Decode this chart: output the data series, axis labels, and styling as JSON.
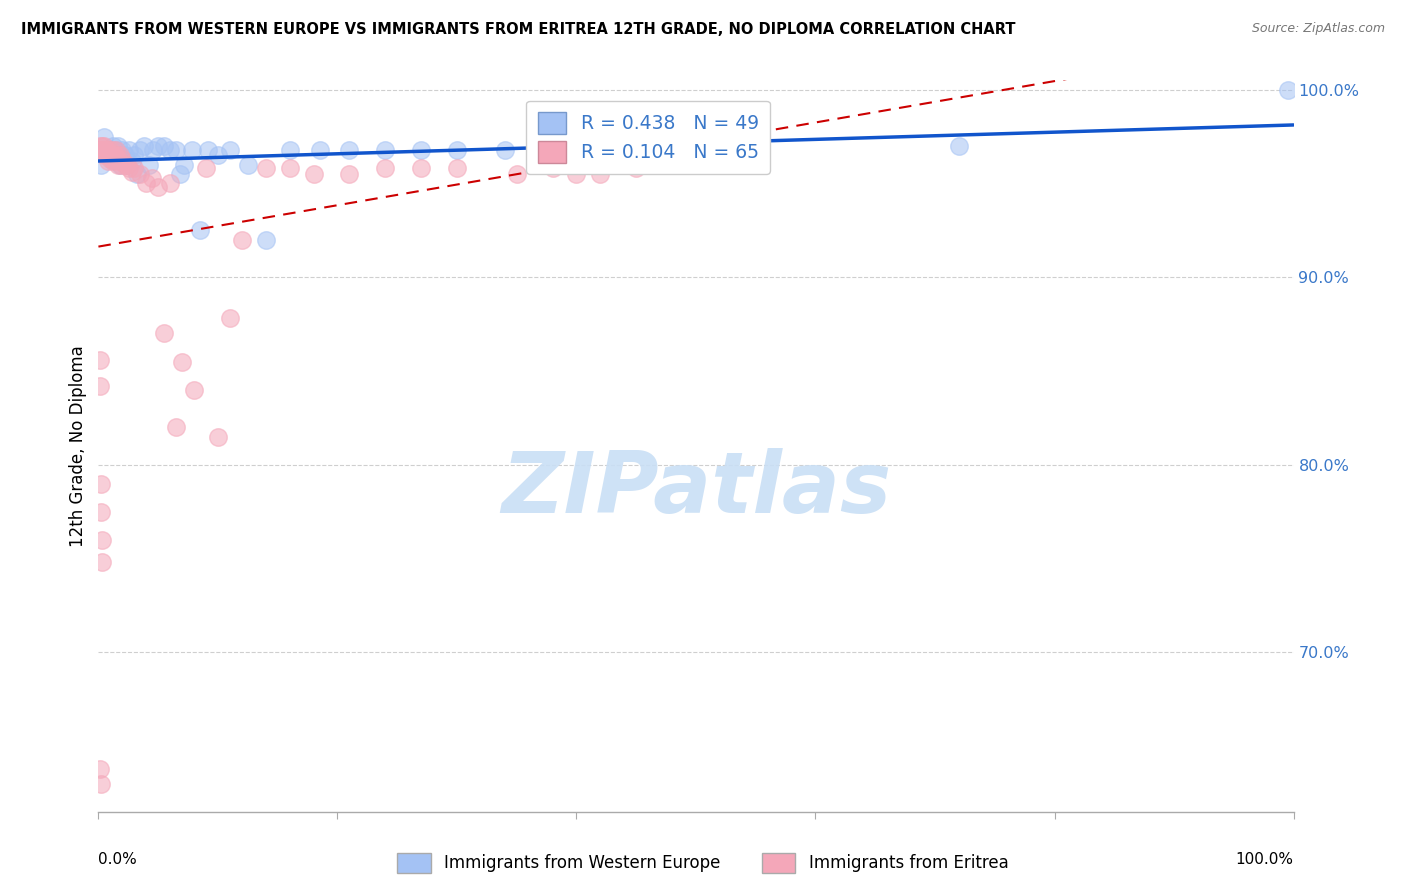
{
  "title": "IMMIGRANTS FROM WESTERN EUROPE VS IMMIGRANTS FROM ERITREA 12TH GRADE, NO DIPLOMA CORRELATION CHART",
  "source": "Source: ZipAtlas.com",
  "ylabel": "12th Grade, No Diploma",
  "xlim": [
    0.0,
    1.0
  ],
  "ylim": [
    0.615,
    1.005
  ],
  "yticks": [
    0.7,
    0.8,
    0.9,
    1.0
  ],
  "ytick_labels": [
    "70.0%",
    "80.0%",
    "90.0%",
    "100.0%"
  ],
  "blue_color": "#a4c2f4",
  "pink_color": "#f4a7b9",
  "blue_line_color": "#1155cc",
  "pink_line_color": "#cc0000",
  "R_blue": "0.438",
  "N_blue": "49",
  "R_pink": "0.104",
  "N_pink": "65",
  "blue_x": [
    0.002,
    0.005,
    0.008,
    0.01,
    0.012,
    0.014,
    0.016,
    0.018,
    0.02,
    0.022,
    0.024,
    0.026,
    0.028,
    0.03,
    0.032,
    0.035,
    0.038,
    0.042,
    0.046,
    0.05,
    0.055,
    0.06,
    0.065,
    0.068,
    0.072,
    0.078,
    0.085,
    0.092,
    0.1,
    0.11,
    0.125,
    0.14,
    0.16,
    0.185,
    0.21,
    0.24,
    0.27,
    0.3,
    0.34,
    0.38,
    0.42,
    0.43,
    0.44,
    0.45,
    0.46,
    0.48,
    0.51,
    0.72,
    0.995
  ],
  "blue_y": [
    0.96,
    0.975,
    0.968,
    0.965,
    0.97,
    0.968,
    0.97,
    0.96,
    0.968,
    0.965,
    0.96,
    0.968,
    0.962,
    0.965,
    0.955,
    0.968,
    0.97,
    0.96,
    0.968,
    0.97,
    0.97,
    0.968,
    0.968,
    0.955,
    0.96,
    0.968,
    0.925,
    0.968,
    0.965,
    0.968,
    0.96,
    0.92,
    0.968,
    0.968,
    0.968,
    0.968,
    0.968,
    0.968,
    0.968,
    0.968,
    0.968,
    0.968,
    0.968,
    0.968,
    0.968,
    0.968,
    0.968,
    0.97,
    1.0
  ],
  "pink_x": [
    0.001,
    0.001,
    0.002,
    0.003,
    0.004,
    0.005,
    0.005,
    0.005,
    0.006,
    0.007,
    0.008,
    0.008,
    0.009,
    0.01,
    0.01,
    0.011,
    0.012,
    0.012,
    0.013,
    0.014,
    0.015,
    0.016,
    0.016,
    0.017,
    0.018,
    0.019,
    0.02,
    0.022,
    0.024,
    0.026,
    0.028,
    0.03,
    0.035,
    0.04,
    0.045,
    0.05,
    0.055,
    0.06,
    0.065,
    0.07,
    0.08,
    0.09,
    0.1,
    0.11,
    0.12,
    0.14,
    0.16,
    0.18,
    0.21,
    0.24,
    0.27,
    0.3,
    0.35,
    0.38,
    0.4,
    0.42,
    0.45,
    0.001,
    0.001,
    0.002,
    0.002,
    0.003,
    0.003,
    0.001,
    0.002
  ],
  "pink_y": [
    0.97,
    0.968,
    0.968,
    0.97,
    0.968,
    0.97,
    0.968,
    0.965,
    0.968,
    0.968,
    0.965,
    0.962,
    0.965,
    0.968,
    0.963,
    0.965,
    0.968,
    0.962,
    0.963,
    0.965,
    0.968,
    0.963,
    0.96,
    0.962,
    0.965,
    0.96,
    0.963,
    0.96,
    0.96,
    0.958,
    0.956,
    0.958,
    0.955,
    0.95,
    0.953,
    0.948,
    0.87,
    0.95,
    0.82,
    0.855,
    0.84,
    0.958,
    0.815,
    0.878,
    0.92,
    0.958,
    0.958,
    0.955,
    0.955,
    0.958,
    0.958,
    0.958,
    0.955,
    0.958,
    0.955,
    0.955,
    0.958,
    0.856,
    0.842,
    0.79,
    0.775,
    0.76,
    0.748,
    0.638,
    0.63
  ],
  "watermark": "ZIPatlas",
  "watermark_color": "#c9dff5",
  "bg_color": "#ffffff",
  "grid_color": "#bbbbbb"
}
